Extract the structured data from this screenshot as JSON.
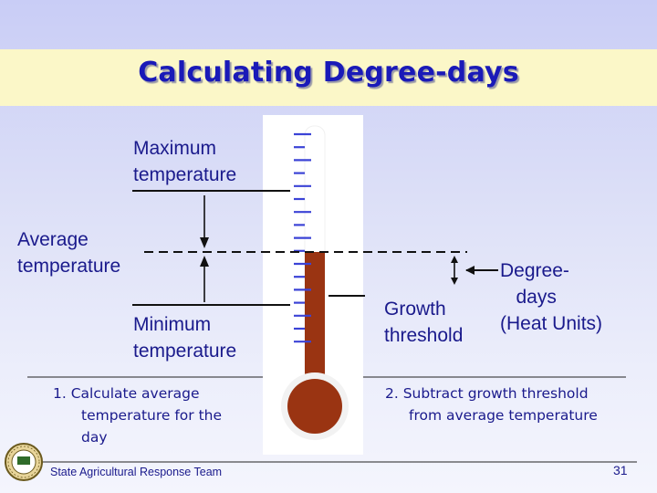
{
  "title": "Calculating Degree-days",
  "labels": {
    "maximum": "Maximum\ntemperature",
    "average": "Average\ntemperature",
    "minimum": "Minimum\ntemperature",
    "growth_threshold": "Growth\nthreshold",
    "degree_days": "Degree-\n   days\n(Heat Units)"
  },
  "steps": {
    "step1_line1": "1. Calculate average",
    "step1_line2": "temperature for the",
    "step1_line3": "day",
    "step2_line1": "2. Subtract growth threshold",
    "step2_line2": "from average temperature"
  },
  "footer": {
    "organization": "State Agricultural Response Team",
    "page_number": "31"
  },
  "colors": {
    "title": "#1a1ab8",
    "text": "#1a1a8c",
    "title_band": "#fbf7c8",
    "mercury": "#9a3412",
    "tick": "#3b43d6"
  },
  "icons": {
    "logo": "state-seal-icon"
  }
}
